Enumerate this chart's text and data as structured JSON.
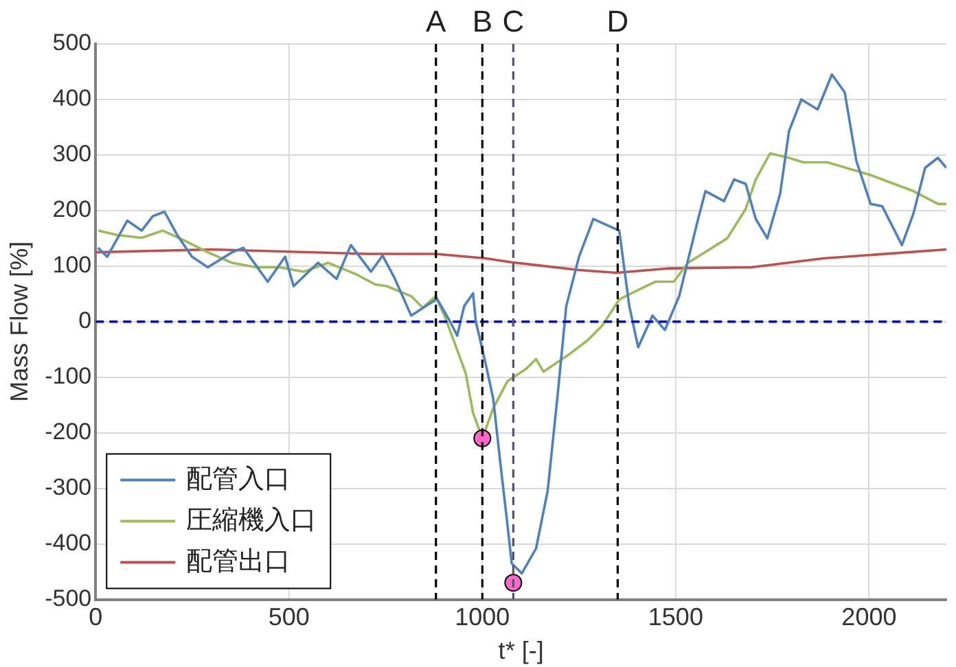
{
  "chart_data": {
    "type": "line",
    "xlabel": "t* [-]",
    "ylabel": "Mass Flow [%]",
    "xlim": [
      0,
      2200
    ],
    "xticks": [
      0,
      500,
      1000,
      1500,
      2000
    ],
    "ylim": [
      -500,
      500
    ],
    "yticks": [
      -500,
      -400,
      -300,
      -200,
      -100,
      0,
      100,
      200,
      300,
      400,
      500
    ],
    "grid": true,
    "legend": "bottom left",
    "marker": "none",
    "line_style": "solid",
    "series": [
      {
        "name": "配管入口",
        "color": "#4f81bd",
        "x": [
          6,
          30,
          82,
          119,
          148,
          178,
          211,
          249,
          290,
          353,
          382,
          445,
          490,
          512,
          575,
          623,
          660,
          712,
          742,
          772,
          816,
          853,
          883,
          916,
          935,
          953,
          976,
          983,
          1009,
          1028,
          1046,
          1065,
          1076,
          1102,
          1139,
          1169,
          1195,
          1217,
          1250,
          1287,
          1354,
          1380,
          1403,
          1440,
          1472,
          1509,
          1558,
          1577,
          1625,
          1651,
          1681,
          1707,
          1737,
          1770,
          1793,
          1825,
          1867,
          1904,
          1937,
          1967,
          2004,
          2034,
          2085,
          2115,
          2145,
          2178,
          2200
        ],
        "values": [
          133,
          117,
          182,
          164,
          190,
          198,
          156,
          117,
          98,
          125,
          133,
          72,
          117,
          64,
          106,
          77,
          138,
          90,
          119,
          80,
          11,
          28,
          41,
          1,
          -25,
          28,
          51,
          1,
          -77,
          -138,
          -251,
          -366,
          -435,
          -453,
          -408,
          -304,
          -130,
          28,
          117,
          185,
          164,
          28,
          -46,
          11,
          -15,
          46,
          185,
          235,
          217,
          256,
          248,
          185,
          150,
          230,
          343,
          400,
          382,
          445,
          413,
          290,
          212,
          208,
          138,
          195,
          277,
          295,
          277
        ]
      },
      {
        "name": "圧縮機入口",
        "color": "#9bbb59",
        "x": [
          7,
          56,
          119,
          174,
          230,
          290,
          353,
          415,
          475,
          538,
          601,
          675,
          723,
          753,
          816,
          846,
          879,
          902,
          935,
          957,
          976,
          1000,
          1028,
          1065,
          1113,
          1139,
          1158,
          1224,
          1273,
          1310,
          1354,
          1385,
          1447,
          1495,
          1532,
          1633,
          1681,
          1707,
          1744,
          1793,
          1830,
          1892,
          2004,
          2115,
          2178,
          2200
        ],
        "values": [
          164,
          156,
          151,
          164,
          146,
          125,
          106,
          98,
          98,
          90,
          106,
          85,
          67,
          64,
          46,
          25,
          46,
          11,
          -51,
          -93,
          -164,
          -210,
          -156,
          -107,
          -85,
          -67,
          -90,
          -59,
          -33,
          -7,
          40,
          51,
          72,
          72,
          106,
          150,
          203,
          256,
          303,
          295,
          287,
          287,
          264,
          235,
          212,
          212
        ]
      },
      {
        "name": "配管出口",
        "color": "#c0504d",
        "x": [
          0,
          300,
          705,
          879,
          1009,
          1076,
          1250,
          1347,
          1484,
          1696,
          1881,
          2200
        ],
        "values": [
          125,
          130,
          122,
          122,
          114,
          107,
          93,
          88,
          96,
          98,
          114,
          130
        ]
      },
      {
        "type": "scatter",
        "color": "#ff66cc",
        "marker": "circle",
        "x": [
          1000,
          1080
        ],
        "values": [
          -210,
          -470
        ]
      }
    ],
    "ref_lines": [
      {
        "axis": "y",
        "value": 0,
        "color": "#0000ff",
        "line_style": "dashed"
      },
      {
        "axis": "x",
        "value": 880,
        "label": "A",
        "color": "#000000",
        "line_style": "dashed"
      },
      {
        "axis": "x",
        "value": 1000,
        "label": "B",
        "color": "#000000",
        "line_style": "dashed"
      },
      {
        "axis": "x",
        "value": 1080,
        "label": "C",
        "color": "#5c4f6e",
        "line_style": "dashed"
      },
      {
        "axis": "x",
        "value": 1350,
        "label": "D",
        "color": "#000000",
        "line_style": "dashed"
      }
    ]
  }
}
